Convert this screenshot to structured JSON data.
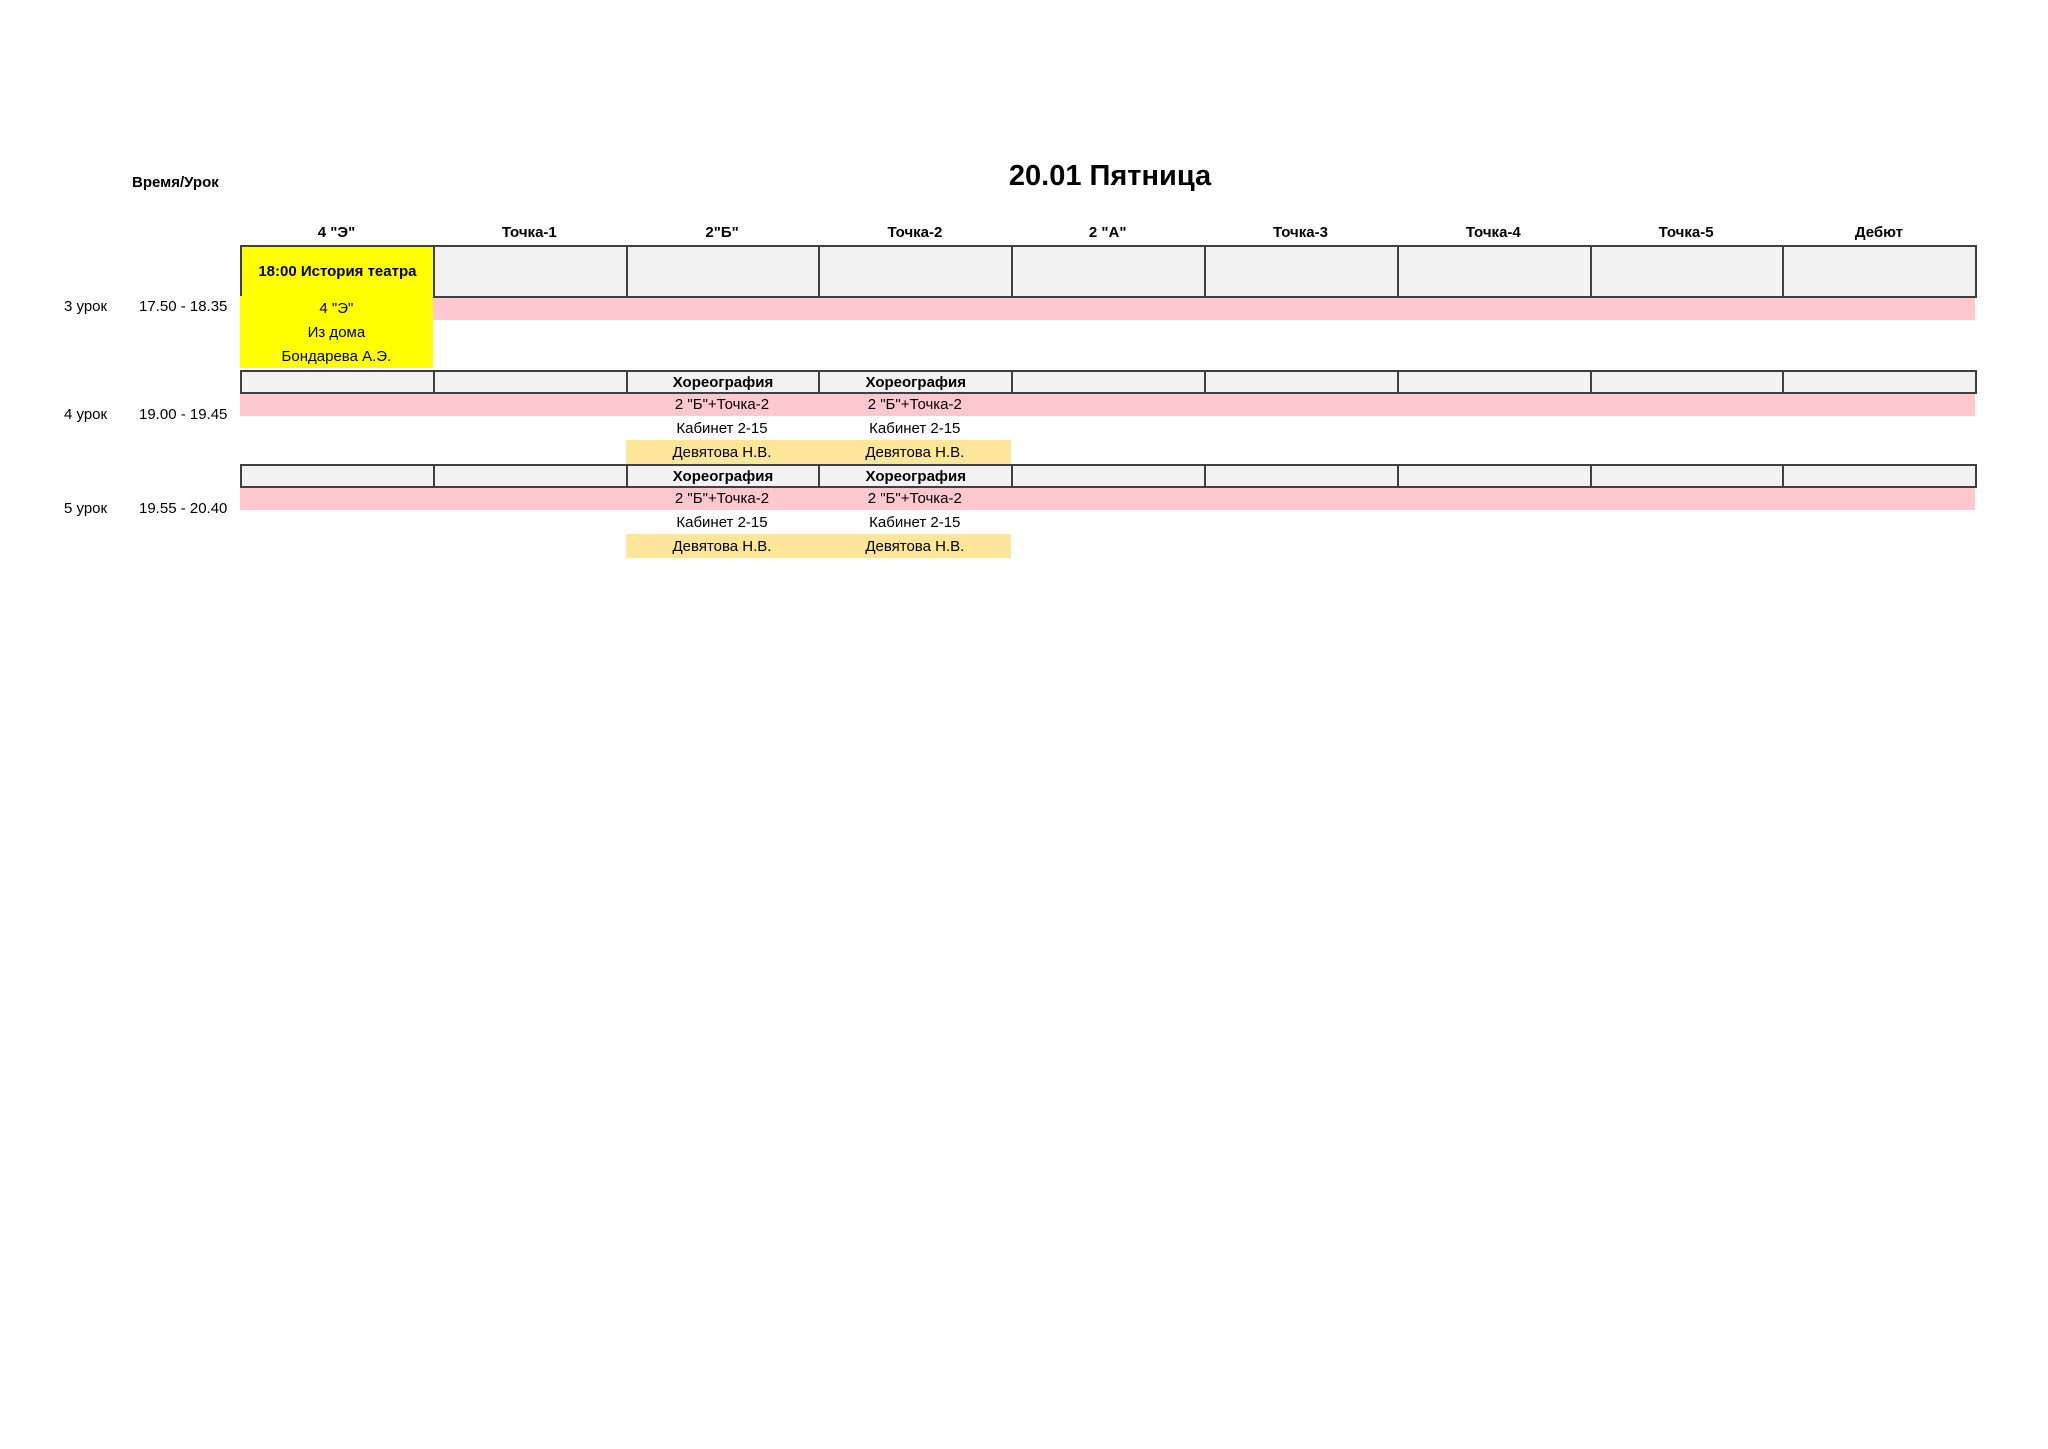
{
  "title": "20.01 Пятница",
  "corner_label": "Время/Урок",
  "columns": [
    "4 \"Э\"",
    "Точка-1",
    "2\"Б\"",
    "Точка-2",
    "2 \"А\"",
    "Точка-3",
    "Точка-4",
    "Точка-5",
    "Дебют"
  ],
  "colors": {
    "header_bg": "#f2f2f2",
    "border": "#404040",
    "pink": "#ffc7ce",
    "yellow": "#ffff00",
    "light_yellow": "#ffe699"
  },
  "lessons": [
    {
      "label": "3 урок",
      "time": "17.50 - 18.35",
      "cells": [
        {
          "col": 0,
          "header": "18:00 История театра",
          "lines": [
            "4 \"Э\"",
            "Из дома",
            "Бондарева А.Э."
          ],
          "highlight": "yellow"
        }
      ]
    },
    {
      "label": "4 урок",
      "time": "19.00 - 19.45",
      "cells": [
        {
          "col": 2,
          "header": "Хореография",
          "lines": [
            "2 \"Б\"+Точка-2",
            "Кабинет 2-15",
            "Девятова Н.В."
          ],
          "highlight": "teacher"
        },
        {
          "col": 3,
          "header": "Хореография",
          "lines": [
            "2 \"Б\"+Точка-2",
            "Кабинет 2-15",
            "Девятова Н.В."
          ],
          "highlight": "teacher"
        }
      ]
    },
    {
      "label": "5 урок",
      "time": "19.55 - 20.40",
      "cells": [
        {
          "col": 2,
          "header": "Хореография",
          "lines": [
            "2 \"Б\"+Точка-2",
            "Кабинет 2-15",
            "Девятова Н.В."
          ],
          "highlight": "teacher"
        },
        {
          "col": 3,
          "header": "Хореография",
          "lines": [
            "2 \"Б\"+Точка-2",
            "Кабинет 2-15",
            "Девятова Н.В."
          ],
          "highlight": "teacher"
        }
      ]
    }
  ]
}
